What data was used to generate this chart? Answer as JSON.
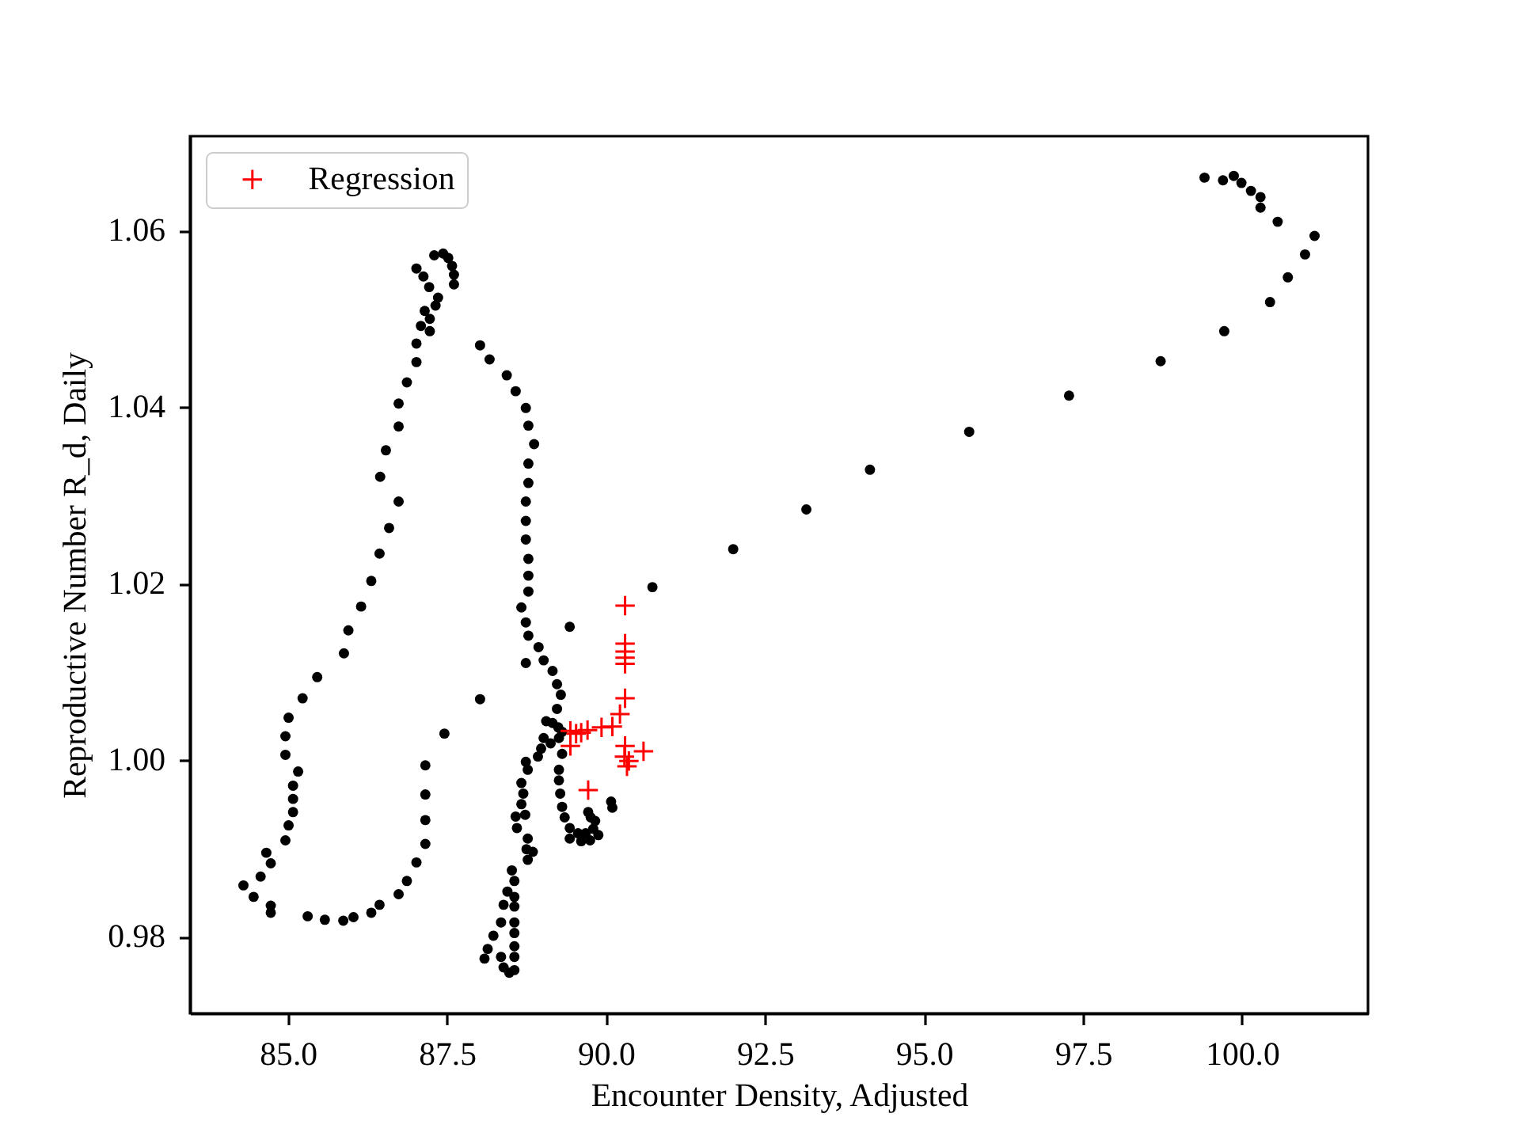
{
  "chart_data": {
    "type": "scatter",
    "xlabel": "Encounter Density, Adjusted",
    "ylabel": "Reproductive Number R_d, Daily",
    "xlim": [
      83.46,
      101.98
    ],
    "ylim": [
      0.9713,
      1.0707
    ],
    "xticks": [
      {
        "value": 85,
        "label": "85.0"
      },
      87.5,
      {
        "value": 90,
        "label": "90.0"
      },
      92.5,
      {
        "value": 95,
        "label": "95.0"
      },
      97.5,
      {
        "value": 100,
        "label": "100.0"
      }
    ],
    "yticks": [
      0.98,
      {
        "value": 1,
        "label": "1.00"
      },
      1.02,
      1.04,
      1.06
    ],
    "legend": "top left",
    "series": [
      {
        "color": "#000000",
        "marker": "circle",
        "x": [
          87.3,
          87.44,
          87.52,
          87.58,
          87.61,
          87.61,
          87.02,
          87.13,
          87.22,
          87.36,
          87.32,
          87.15,
          87.23,
          87.09,
          87.23,
          87.02,
          87.02,
          86.87,
          86.74,
          86.74,
          86.54,
          86.45,
          86.74,
          86.59,
          86.44,
          86.31,
          86.15,
          85.95,
          85.88,
          85.46,
          85.23,
          85.01,
          84.96,
          84.96,
          85.16,
          85.08,
          85.08,
          85.08,
          85.01,
          84.96,
          84.66,
          84.73,
          84.57,
          84.3,
          84.46,
          84.73,
          84.73,
          85.31,
          85.58,
          85.87,
          86.03,
          86.31,
          86.44,
          86.74,
          86.87,
          87.02,
          87.16,
          87.16,
          87.16,
          87.16,
          87.46,
          88.02,
          88.17,
          88.44,
          88.58,
          88.74,
          88.78,
          88.87,
          88.78,
          88.78,
          88.74,
          88.74,
          88.74,
          88.78,
          88.78,
          88.78,
          88.67,
          88.74,
          88.78,
          88.94,
          89.02,
          89.16,
          89.23,
          89.29,
          89.23,
          90.73,
          89.43,
          88.74,
          88.02,
          90.08,
          90.1,
          89.06,
          89.16,
          89.25,
          89.31,
          89.02,
          88.98,
          88.93,
          89.26,
          89.31,
          89.26,
          89.26,
          89.28,
          89.31,
          89.35,
          89.43,
          89.56,
          89.68,
          89.8,
          89.76,
          89.72,
          89.13,
          89.43,
          89.61,
          89.75,
          89.88,
          89.83,
          88.74,
          88.77,
          88.67,
          88.7,
          88.67,
          88.73,
          88.58,
          88.6,
          88.77,
          88.75,
          88.85,
          88.77,
          88.52,
          88.56,
          88.45,
          88.56,
          88.39,
          88.56,
          88.35,
          88.56,
          88.56,
          88.23,
          88.14,
          88.09,
          88.35,
          88.39,
          88.56,
          88.56,
          88.56,
          88.48,
          99.41,
          99.7,
          99.87,
          99.99,
          100.14,
          100.29,
          100.29,
          100.56,
          101.14,
          100.99,
          100.72,
          100.44,
          99.72,
          98.72,
          97.28,
          95.71,
          94.15,
          93.15,
          92.0
        ],
        "values": [
          1.0572,
          1.0574,
          1.0569,
          1.056,
          1.055,
          1.0539,
          1.0557,
          1.0548,
          1.0536,
          1.0524,
          1.0515,
          1.0509,
          1.05,
          1.0492,
          1.0486,
          1.0472,
          1.0451,
          1.0428,
          1.0404,
          1.0378,
          1.0351,
          1.0321,
          1.0293,
          1.0263,
          1.0234,
          1.0203,
          1.0174,
          1.0147,
          1.0121,
          1.0094,
          1.007,
          1.0048,
          1.0027,
          1.0006,
          0.9987,
          0.9971,
          0.9956,
          0.9941,
          0.9926,
          0.9909,
          0.9895,
          0.9883,
          0.9868,
          0.9858,
          0.9845,
          0.9835,
          0.9827,
          0.9823,
          0.9819,
          0.9818,
          0.9822,
          0.9827,
          0.9836,
          0.9848,
          0.9863,
          0.9884,
          0.9905,
          0.9932,
          0.9961,
          0.9994,
          1.003,
          1.047,
          1.0454,
          1.0436,
          1.0418,
          1.0399,
          1.0379,
          1.0358,
          1.0336,
          1.0314,
          1.0293,
          1.0271,
          1.025,
          1.0228,
          1.0209,
          1.0191,
          1.0173,
          1.0156,
          1.0141,
          1.0128,
          1.0113,
          1.0101,
          1.0086,
          1.0074,
          1.0058,
          1.0196,
          1.0151,
          1.011,
          1.0069,
          0.9953,
          0.9946,
          1.0044,
          1.0042,
          1.0037,
          1.0032,
          1.0025,
          1.0013,
          1.0004,
          1.0025,
          1.0007,
          0.9989,
          0.9977,
          0.9962,
          0.9947,
          0.9935,
          0.9923,
          0.9917,
          0.9917,
          0.9922,
          0.9935,
          0.9941,
          1.0019,
          0.9911,
          0.9908,
          0.9909,
          0.9915,
          0.9931,
          0.9998,
          0.9989,
          0.9974,
          0.9962,
          0.995,
          0.9938,
          0.9936,
          0.9923,
          0.9911,
          0.9899,
          0.9896,
          0.9887,
          0.9875,
          0.9863,
          0.9851,
          0.9845,
          0.9836,
          0.9834,
          0.9816,
          0.9816,
          0.9804,
          0.9801,
          0.9786,
          0.9775,
          0.9777,
          0.9765,
          0.9789,
          0.9777,
          0.9762,
          0.9759,
          1.066,
          1.0657,
          1.0662,
          1.0654,
          1.0645,
          1.0638,
          1.0626,
          1.061,
          1.0594,
          1.0573,
          1.0547,
          1.0519,
          1.0486,
          1.0452,
          1.0413,
          1.0372,
          1.0329,
          1.0284,
          1.0239
        ]
      },
      {
        "name": "Regression",
        "color": "#ff0000",
        "marker": "cross",
        "x": [
          90.3,
          90.3,
          90.3,
          90.3,
          90.3,
          90.3,
          90.22,
          90.1,
          89.93,
          89.71,
          89.61,
          89.53,
          89.44,
          89.44,
          90.3,
          90.59,
          90.29,
          90.36,
          90.33,
          89.72
        ],
        "values": [
          1.0175,
          1.0132,
          1.0123,
          1.0116,
          1.0109,
          1.007,
          1.0052,
          1.0038,
          1.0037,
          1.0034,
          1.0031,
          1.003,
          1.0033,
          1.0016,
          1.0016,
          1.001,
          1.0004,
          0.9999,
          0.9993,
          0.9966
        ]
      }
    ]
  }
}
